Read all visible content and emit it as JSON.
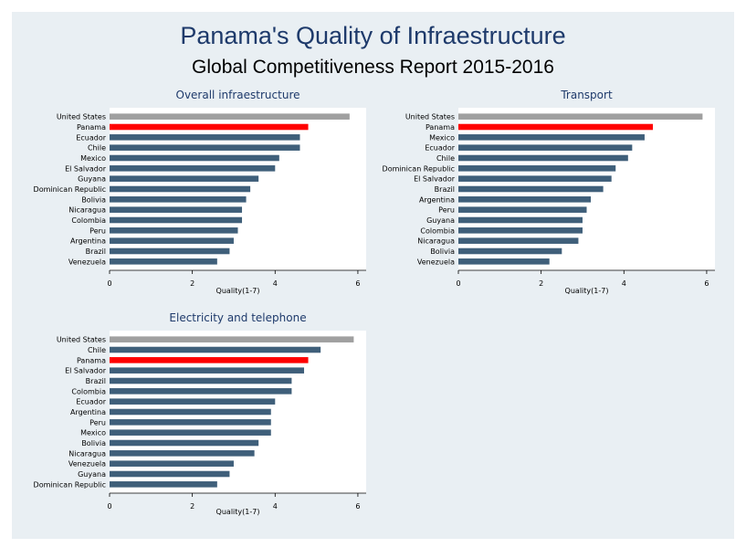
{
  "title": "Panama's Quality of Infraestructure",
  "subtitle": "Global Competitiveness Report 2015-2016",
  "colors": {
    "background": "#e9eff3",
    "plot_region": "#ffffff",
    "bar_default": "#3f5f7a",
    "bar_panama": "#ff0000",
    "bar_united_states": "#a0a0a0",
    "title_text": "#1e3a6b"
  },
  "chart_data": [
    {
      "type": "bar",
      "orientation": "horizontal",
      "title": "Overall infraestructure",
      "xlabel": "Quality(1-7)",
      "xlim": [
        0,
        6.2
      ],
      "xticks": [
        0,
        2,
        4,
        6
      ],
      "categories": [
        "United States",
        "Panama",
        "Ecuador",
        "Chile",
        "Mexico",
        "El Salvador",
        "Guyana",
        "Dominican Republic",
        "Bolivia",
        "Nicaragua",
        "Colombia",
        "Peru",
        "Argentina",
        "Brazil",
        "Venezuela"
      ],
      "values": [
        5.8,
        4.8,
        4.6,
        4.6,
        4.1,
        4.0,
        3.6,
        3.4,
        3.3,
        3.2,
        3.2,
        3.1,
        3.0,
        2.9,
        2.6
      ]
    },
    {
      "type": "bar",
      "orientation": "horizontal",
      "title": "Transport",
      "xlabel": "Quality(1-7)",
      "xlim": [
        0,
        6.2
      ],
      "xticks": [
        0,
        2,
        4,
        6
      ],
      "categories": [
        "United States",
        "Panama",
        "Mexico",
        "Ecuador",
        "Chile",
        "Dominican Republic",
        "El Salvador",
        "Brazil",
        "Argentina",
        "Peru",
        "Guyana",
        "Colombia",
        "Nicaragua",
        "Bolivia",
        "Venezuela"
      ],
      "values": [
        5.9,
        4.7,
        4.5,
        4.2,
        4.1,
        3.8,
        3.7,
        3.5,
        3.2,
        3.1,
        3.0,
        3.0,
        2.9,
        2.5,
        2.2
      ]
    },
    {
      "type": "bar",
      "orientation": "horizontal",
      "title": "Electricity and telephone",
      "xlabel": "Quality(1-7)",
      "xlim": [
        0,
        6.2
      ],
      "xticks": [
        0,
        2,
        4,
        6
      ],
      "categories": [
        "United States",
        "Chile",
        "Panama",
        "El Salvador",
        "Brazil",
        "Colombia",
        "Ecuador",
        "Argentina",
        "Peru",
        "Mexico",
        "Bolivia",
        "Nicaragua",
        "Venezuela",
        "Guyana",
        "Dominican Republic"
      ],
      "values": [
        5.9,
        5.1,
        4.8,
        4.7,
        4.4,
        4.4,
        4.0,
        3.9,
        3.9,
        3.9,
        3.6,
        3.5,
        3.0,
        2.9,
        2.6
      ]
    }
  ]
}
